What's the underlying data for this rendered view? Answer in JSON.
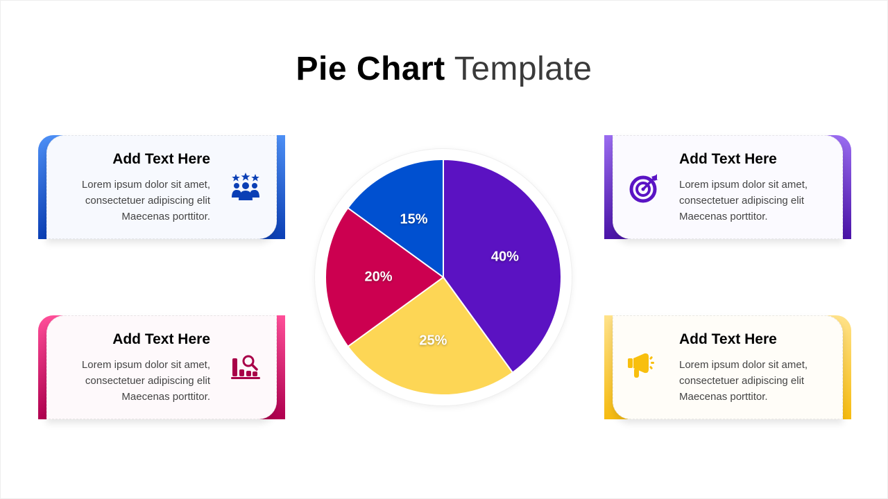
{
  "title": {
    "bold": "Pie Chart",
    "light": "Template"
  },
  "cards": [
    {
      "id": "blue",
      "heading": "Add Text Here",
      "lines": [
        "Lorem ipsum dolor sit amet,",
        "consectetuer adipiscing elit",
        "Maecenas porttitor."
      ],
      "icon": "team-stars-icon",
      "color": "#0b3fb5"
    },
    {
      "id": "purple",
      "heading": "Add Text Here",
      "lines": [
        "Lorem ipsum dolor sit amet,",
        "consectetuer adipiscing elit",
        "Maecenas porttitor."
      ],
      "icon": "target-icon",
      "color": "#5a14c4"
    },
    {
      "id": "pink",
      "heading": "Add Text Here",
      "lines": [
        "Lorem ipsum dolor sit amet,",
        "consectetuer adipiscing elit",
        "Maecenas porttitor."
      ],
      "icon": "chart-search-icon",
      "color": "#a80048"
    },
    {
      "id": "yellow",
      "heading": "Add Text Here",
      "lines": [
        "Lorem ipsum dolor sit amet,",
        "consectetuer adipiscing elit",
        "Maecenas porttitor."
      ],
      "icon": "megaphone-icon",
      "color": "#f8bf0e"
    }
  ],
  "chart_data": {
    "type": "pie",
    "title": "Pie Chart Template",
    "categories": [
      "Purple",
      "Yellow",
      "Pink",
      "Blue"
    ],
    "values": [
      40,
      25,
      20,
      15
    ],
    "labels": [
      "40%",
      "25%",
      "20%",
      "15%"
    ],
    "colors": [
      "#5b12c2",
      "#fdd655",
      "#cc0050",
      "#0050d0"
    ],
    "start_angle_deg": 0,
    "direction": "clockwise",
    "legend": "none"
  }
}
